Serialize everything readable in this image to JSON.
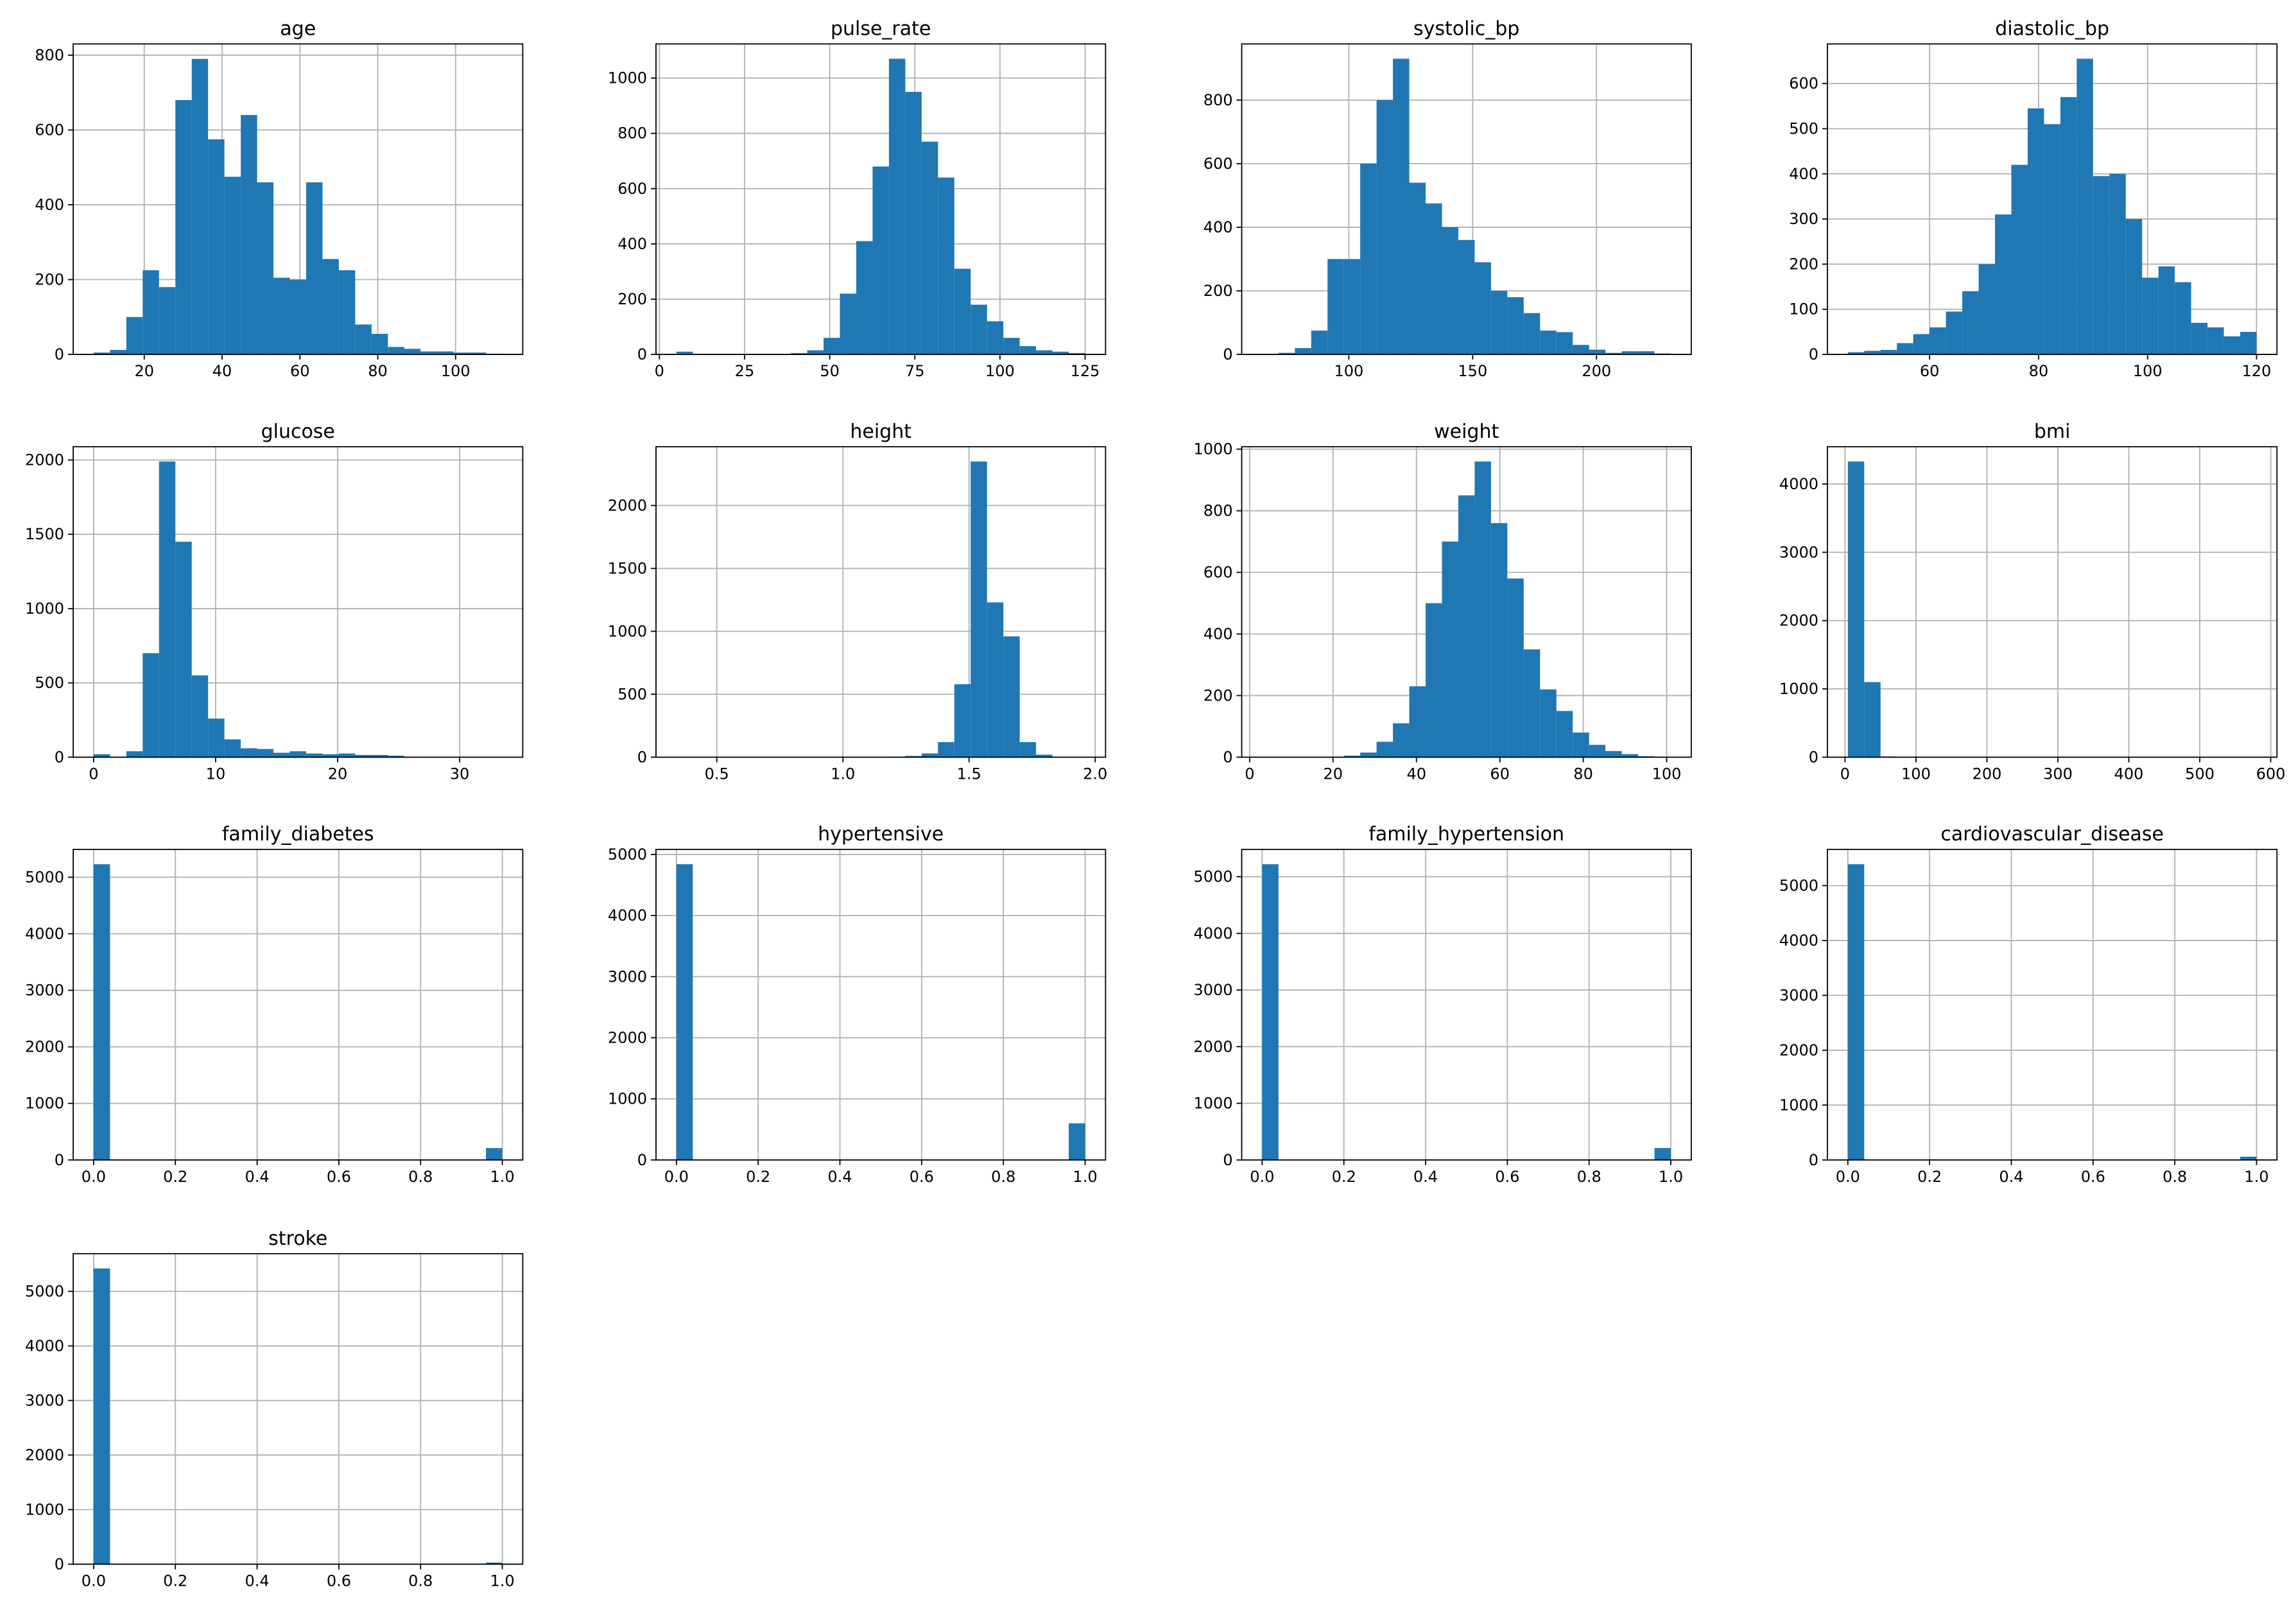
{
  "chart_data": [
    {
      "type": "histogram",
      "title": "age",
      "color": "#1f77b4",
      "grid": true,
      "bins": [
        7,
        11.2,
        15.4,
        19.6,
        23.8,
        28,
        32.2,
        36.4,
        40.6,
        44.8,
        49,
        53.2,
        57.4,
        61.6,
        65.8,
        70,
        74.2,
        78.4,
        82.6,
        86.8,
        91,
        95.2,
        99.4,
        103.6,
        107.8,
        112
      ],
      "values": [
        5,
        12,
        100,
        225,
        180,
        680,
        790,
        575,
        475,
        640,
        460,
        205,
        200,
        460,
        255,
        225,
        80,
        55,
        20,
        15,
        8,
        8,
        5,
        5,
        2
      ],
      "xlim": [
        1.75,
        117.25
      ],
      "xticks": [
        20,
        40,
        60,
        80,
        100
      ],
      "ylim": [
        0,
        830
      ],
      "yticks": [
        0,
        200,
        400,
        600,
        800
      ]
    },
    {
      "type": "histogram",
      "title": "pulse_rate",
      "color": "#1f77b4",
      "grid": true,
      "bins": [
        5,
        9.8,
        14.6,
        19.4,
        24.2,
        29,
        33.8,
        38.6,
        43.4,
        48.2,
        53,
        57.8,
        62.6,
        67.4,
        72.2,
        77,
        81.8,
        86.6,
        91.4,
        96.2,
        101,
        105.8,
        110.6,
        115.4,
        120.2,
        125
      ],
      "values": [
        10,
        2,
        0,
        0,
        0,
        0,
        2,
        5,
        15,
        60,
        220,
        410,
        680,
        1070,
        950,
        770,
        640,
        310,
        180,
        120,
        60,
        30,
        15,
        10,
        5
      ],
      "xlim": [
        -1,
        131
      ],
      "xticks": [
        0,
        25,
        50,
        75,
        100,
        125
      ],
      "ylim": [
        0,
        1123.5
      ],
      "yticks": [
        0,
        200,
        400,
        600,
        800,
        1000
      ]
    },
    {
      "type": "histogram",
      "title": "systolic_bp",
      "color": "#1f77b4",
      "grid": true,
      "bins": [
        65,
        71.6,
        78.2,
        84.8,
        91.4,
        98,
        104.6,
        111.2,
        117.8,
        124.4,
        131,
        137.6,
        144.2,
        150.8,
        157.4,
        164,
        170.6,
        177.2,
        183.8,
        190.4,
        197,
        203.6,
        210.2,
        216.8,
        223.4,
        230
      ],
      "values": [
        2,
        5,
        20,
        75,
        300,
        300,
        600,
        800,
        930,
        540,
        475,
        400,
        360,
        290,
        200,
        180,
        130,
        75,
        70,
        30,
        15,
        5,
        10,
        10,
        3
      ],
      "xlim": [
        56.75,
        238.25
      ],
      "xticks": [
        100,
        150,
        200
      ],
      "ylim": [
        0,
        976.5
      ],
      "yticks": [
        0,
        200,
        400,
        600,
        800
      ]
    },
    {
      "type": "histogram",
      "title": "diastolic_bp",
      "color": "#1f77b4",
      "grid": true,
      "bins": [
        45,
        48,
        51,
        54,
        57,
        60,
        63,
        66,
        69,
        72,
        75,
        78,
        81,
        84,
        87,
        90,
        93,
        96,
        99,
        102,
        105,
        108,
        111,
        114,
        117,
        120
      ],
      "values": [
        5,
        8,
        10,
        25,
        45,
        60,
        95,
        140,
        200,
        310,
        420,
        545,
        510,
        570,
        655,
        395,
        400,
        300,
        170,
        195,
        160,
        70,
        60,
        40,
        50
      ],
      "xlim": [
        41.25,
        123.75
      ],
      "xticks": [
        60,
        80,
        100,
        120
      ],
      "ylim": [
        0,
        687.75
      ],
      "yticks": [
        0,
        100,
        200,
        300,
        400,
        500,
        600
      ]
    },
    {
      "type": "histogram",
      "title": "glucose",
      "color": "#1f77b4",
      "grid": true,
      "bins": [
        0,
        1.34,
        2.68,
        4.02,
        5.36,
        6.7,
        8.04,
        9.38,
        10.72,
        12.06,
        13.4,
        14.74,
        16.08,
        17.42,
        18.76,
        20.1,
        21.44,
        22.78,
        24.12,
        25.46,
        26.8,
        28.14,
        29.48,
        30.82,
        32.16,
        33.5
      ],
      "values": [
        20,
        0,
        40,
        700,
        1990,
        1450,
        550,
        260,
        120,
        60,
        55,
        30,
        40,
        25,
        20,
        25,
        15,
        15,
        10,
        2,
        0,
        0,
        0,
        0,
        3
      ],
      "xlim": [
        -1.675,
        35.175
      ],
      "xticks": [
        0,
        10,
        20,
        30
      ],
      "ylim": [
        0,
        2089.5
      ],
      "yticks": [
        0,
        500,
        1000,
        1500,
        2000
      ]
    },
    {
      "type": "histogram",
      "title": "height",
      "color": "#1f77b4",
      "grid": true,
      "bins": [
        0.34,
        0.4048,
        0.4696,
        0.5344,
        0.5992,
        0.664,
        0.7288,
        0.7936,
        0.8584,
        0.9232,
        0.988,
        1.0528,
        1.1176,
        1.1824,
        1.2472,
        1.312,
        1.3768,
        1.4416,
        1.5064,
        1.5712,
        1.636,
        1.7008,
        1.7656,
        1.8304,
        1.8952,
        1.96
      ],
      "values": [
        1,
        0,
        0,
        0,
        0,
        0,
        0,
        0,
        0,
        0,
        0,
        0,
        0,
        5,
        10,
        30,
        120,
        580,
        2350,
        1230,
        960,
        120,
        20,
        0,
        1
      ],
      "xlim": [
        0.259,
        2.041
      ],
      "xticks": [
        0.5,
        {
          "value": 1,
          "label": "1.0"
        },
        1.5,
        {
          "value": 2,
          "label": "2.0"
        }
      ],
      "ylim": [
        0,
        2467.5
      ],
      "yticks": [
        0,
        500,
        1000,
        1500,
        2000
      ]
    },
    {
      "type": "histogram",
      "title": "weight",
      "color": "#1f77b4",
      "grid": true,
      "bins": [
        3,
        6.92,
        10.84,
        14.76,
        18.68,
        22.6,
        26.52,
        30.44,
        34.36,
        38.28,
        42.2,
        46.12,
        50.04,
        53.96,
        57.88,
        61.8,
        65.72,
        69.64,
        73.56,
        77.48,
        81.4,
        85.32,
        89.24,
        93.16,
        97.08,
        101
      ],
      "values": [
        1,
        0,
        0,
        0,
        0,
        5,
        15,
        50,
        110,
        230,
        500,
        700,
        850,
        960,
        760,
        580,
        350,
        220,
        150,
        80,
        40,
        20,
        10,
        3,
        2
      ],
      "xlim": [
        -1.9,
        105.9
      ],
      "xticks": [
        0,
        20,
        40,
        60,
        80,
        100
      ],
      "ylim": [
        0,
        1008
      ],
      "yticks": [
        0,
        200,
        400,
        600,
        800,
        1000
      ]
    },
    {
      "type": "histogram",
      "title": "bmi",
      "color": "#1f77b4",
      "grid": true,
      "bins": [
        4,
        27.04,
        50.08,
        73.12,
        96.16,
        119.2,
        142.24,
        165.28,
        188.32,
        211.36,
        234.4,
        257.44,
        280.48,
        303.52,
        326.56,
        349.6,
        372.64,
        395.68,
        418.72,
        441.76,
        464.8,
        487.84,
        510.88,
        533.92,
        556.96,
        580
      ],
      "values": [
        4330,
        1100,
        10,
        0,
        0,
        0,
        0,
        0,
        0,
        0,
        0,
        0,
        0,
        0,
        0,
        0,
        0,
        0,
        0,
        0,
        0,
        0,
        0,
        0,
        1
      ],
      "xlim": [
        -24.8,
        608.8
      ],
      "xticks": [
        0,
        100,
        200,
        300,
        400,
        500,
        600
      ],
      "ylim": [
        0,
        4546.5
      ],
      "yticks": [
        0,
        1000,
        2000,
        3000,
        4000
      ]
    },
    {
      "type": "histogram",
      "title": "family_diabetes",
      "color": "#1f77b4",
      "grid": true,
      "bins": [
        0,
        0.04,
        0.08,
        0.12,
        0.16,
        0.2,
        0.24,
        0.28,
        0.32,
        0.36,
        0.4,
        0.44,
        0.48,
        0.52,
        0.56,
        0.6,
        0.64,
        0.68,
        0.72,
        0.76,
        0.8,
        0.84,
        0.88,
        0.92,
        0.96,
        1
      ],
      "values": [
        5230,
        0,
        0,
        0,
        0,
        0,
        0,
        0,
        0,
        0,
        0,
        0,
        0,
        0,
        0,
        0,
        0,
        0,
        0,
        0,
        0,
        0,
        0,
        0,
        210
      ],
      "xlim": [
        -0.05,
        1.05
      ],
      "xticks": [
        {
          "value": 0,
          "label": "0.0"
        },
        0.2,
        0.4,
        0.6,
        0.8,
        {
          "value": 1,
          "label": "1.0"
        }
      ],
      "ylim": [
        0,
        5491.5
      ],
      "yticks": [
        0,
        1000,
        2000,
        3000,
        4000,
        5000
      ]
    },
    {
      "type": "histogram",
      "title": "hypertensive",
      "color": "#1f77b4",
      "grid": true,
      "bins": [
        0,
        0.04,
        0.08,
        0.12,
        0.16,
        0.2,
        0.24,
        0.28,
        0.32,
        0.36,
        0.4,
        0.44,
        0.48,
        0.52,
        0.56,
        0.6,
        0.64,
        0.68,
        0.72,
        0.76,
        0.8,
        0.84,
        0.88,
        0.92,
        0.96,
        1
      ],
      "values": [
        4840,
        0,
        0,
        0,
        0,
        0,
        0,
        0,
        0,
        0,
        0,
        0,
        0,
        0,
        0,
        0,
        0,
        0,
        0,
        0,
        0,
        0,
        0,
        0,
        600
      ],
      "xlim": [
        -0.05,
        1.05
      ],
      "xticks": [
        {
          "value": 0,
          "label": "0.0"
        },
        0.2,
        0.4,
        0.6,
        0.8,
        {
          "value": 1,
          "label": "1.0"
        }
      ],
      "ylim": [
        0,
        5082
      ],
      "yticks": [
        0,
        1000,
        2000,
        3000,
        4000,
        5000
      ]
    },
    {
      "type": "histogram",
      "title": "family_hypertension",
      "color": "#1f77b4",
      "grid": true,
      "bins": [
        0,
        0.04,
        0.08,
        0.12,
        0.16,
        0.2,
        0.24,
        0.28,
        0.32,
        0.36,
        0.4,
        0.44,
        0.48,
        0.52,
        0.56,
        0.6,
        0.64,
        0.68,
        0.72,
        0.76,
        0.8,
        0.84,
        0.88,
        0.92,
        0.96,
        1
      ],
      "values": [
        5220,
        0,
        0,
        0,
        0,
        0,
        0,
        0,
        0,
        0,
        0,
        0,
        0,
        0,
        0,
        0,
        0,
        0,
        0,
        0,
        0,
        0,
        0,
        0,
        210
      ],
      "xlim": [
        -0.05,
        1.05
      ],
      "xticks": [
        {
          "value": 0,
          "label": "0.0"
        },
        0.2,
        0.4,
        0.6,
        0.8,
        {
          "value": 1,
          "label": "1.0"
        }
      ],
      "ylim": [
        0,
        5481
      ],
      "yticks": [
        0,
        1000,
        2000,
        3000,
        4000,
        5000
      ]
    },
    {
      "type": "histogram",
      "title": "cardiovascular_disease",
      "color": "#1f77b4",
      "grid": true,
      "bins": [
        0,
        0.04,
        0.08,
        0.12,
        0.16,
        0.2,
        0.24,
        0.28,
        0.32,
        0.36,
        0.4,
        0.44,
        0.48,
        0.52,
        0.56,
        0.6,
        0.64,
        0.68,
        0.72,
        0.76,
        0.8,
        0.84,
        0.88,
        0.92,
        0.96,
        1
      ],
      "values": [
        5390,
        0,
        0,
        0,
        0,
        0,
        0,
        0,
        0,
        0,
        0,
        0,
        0,
        0,
        0,
        0,
        0,
        0,
        0,
        0,
        0,
        0,
        0,
        0,
        60
      ],
      "xlim": [
        -0.05,
        1.05
      ],
      "xticks": [
        {
          "value": 0,
          "label": "0.0"
        },
        0.2,
        0.4,
        0.6,
        0.8,
        {
          "value": 1,
          "label": "1.0"
        }
      ],
      "ylim": [
        0,
        5659.5
      ],
      "yticks": [
        0,
        1000,
        2000,
        3000,
        4000,
        5000
      ]
    },
    {
      "type": "histogram",
      "title": "stroke",
      "color": "#1f77b4",
      "grid": true,
      "bins": [
        0,
        0.04,
        0.08,
        0.12,
        0.16,
        0.2,
        0.24,
        0.28,
        0.32,
        0.36,
        0.4,
        0.44,
        0.48,
        0.52,
        0.56,
        0.6,
        0.64,
        0.68,
        0.72,
        0.76,
        0.8,
        0.84,
        0.88,
        0.92,
        0.96,
        1
      ],
      "values": [
        5420,
        0,
        0,
        0,
        0,
        0,
        0,
        0,
        0,
        0,
        0,
        0,
        0,
        0,
        0,
        0,
        0,
        0,
        0,
        0,
        0,
        0,
        0,
        0,
        30
      ],
      "xlim": [
        -0.05,
        1.05
      ],
      "xticks": [
        {
          "value": 0,
          "label": "0.0"
        },
        0.2,
        0.4,
        0.6,
        0.8,
        {
          "value": 1,
          "label": "1.0"
        }
      ],
      "ylim": [
        0,
        5691
      ],
      "yticks": [
        0,
        1000,
        2000,
        3000,
        4000,
        5000
      ]
    }
  ]
}
